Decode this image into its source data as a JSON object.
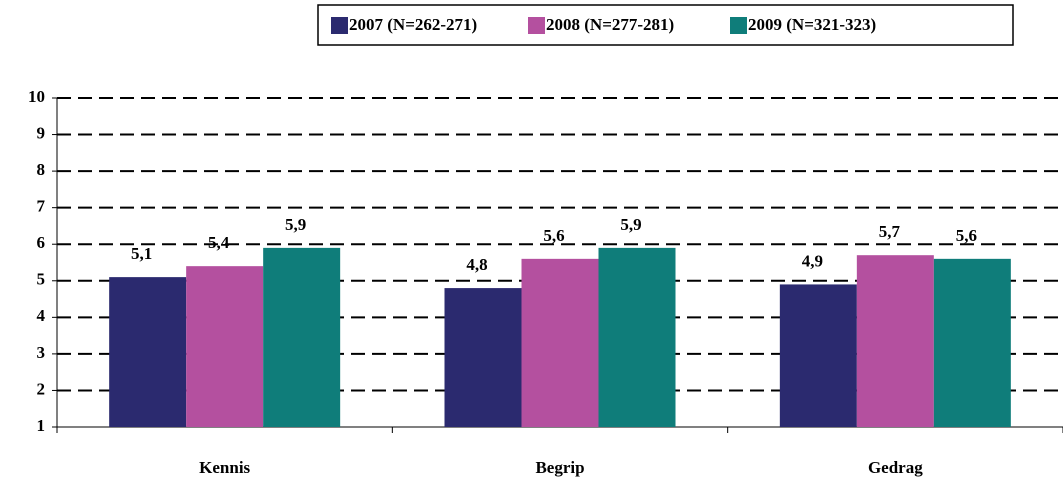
{
  "chart_data": {
    "type": "bar",
    "categories": [
      "Kennis",
      "Begrip",
      "Gedrag"
    ],
    "series": [
      {
        "name": "2007 (N=262-271)",
        "color": "#2b2a6f",
        "values": [
          5.1,
          4.8,
          4.9
        ],
        "value_labels": [
          "5,1",
          "4,8",
          "4,9"
        ]
      },
      {
        "name": "2008 (N=277-281)",
        "color": "#b4509f",
        "values": [
          5.4,
          5.6,
          5.7
        ],
        "value_labels": [
          "5,4",
          "5,6",
          "5,7"
        ]
      },
      {
        "name": "2009 (N=321-323)",
        "color": "#0f7d7a",
        "values": [
          5.9,
          5.9,
          5.6
        ],
        "value_labels": [
          "5,9",
          "5,9",
          "5,6"
        ]
      }
    ],
    "ylim": [
      1,
      10
    ],
    "yticks": [
      1,
      2,
      3,
      4,
      5,
      6,
      7,
      8,
      9,
      10
    ],
    "grid": true
  }
}
